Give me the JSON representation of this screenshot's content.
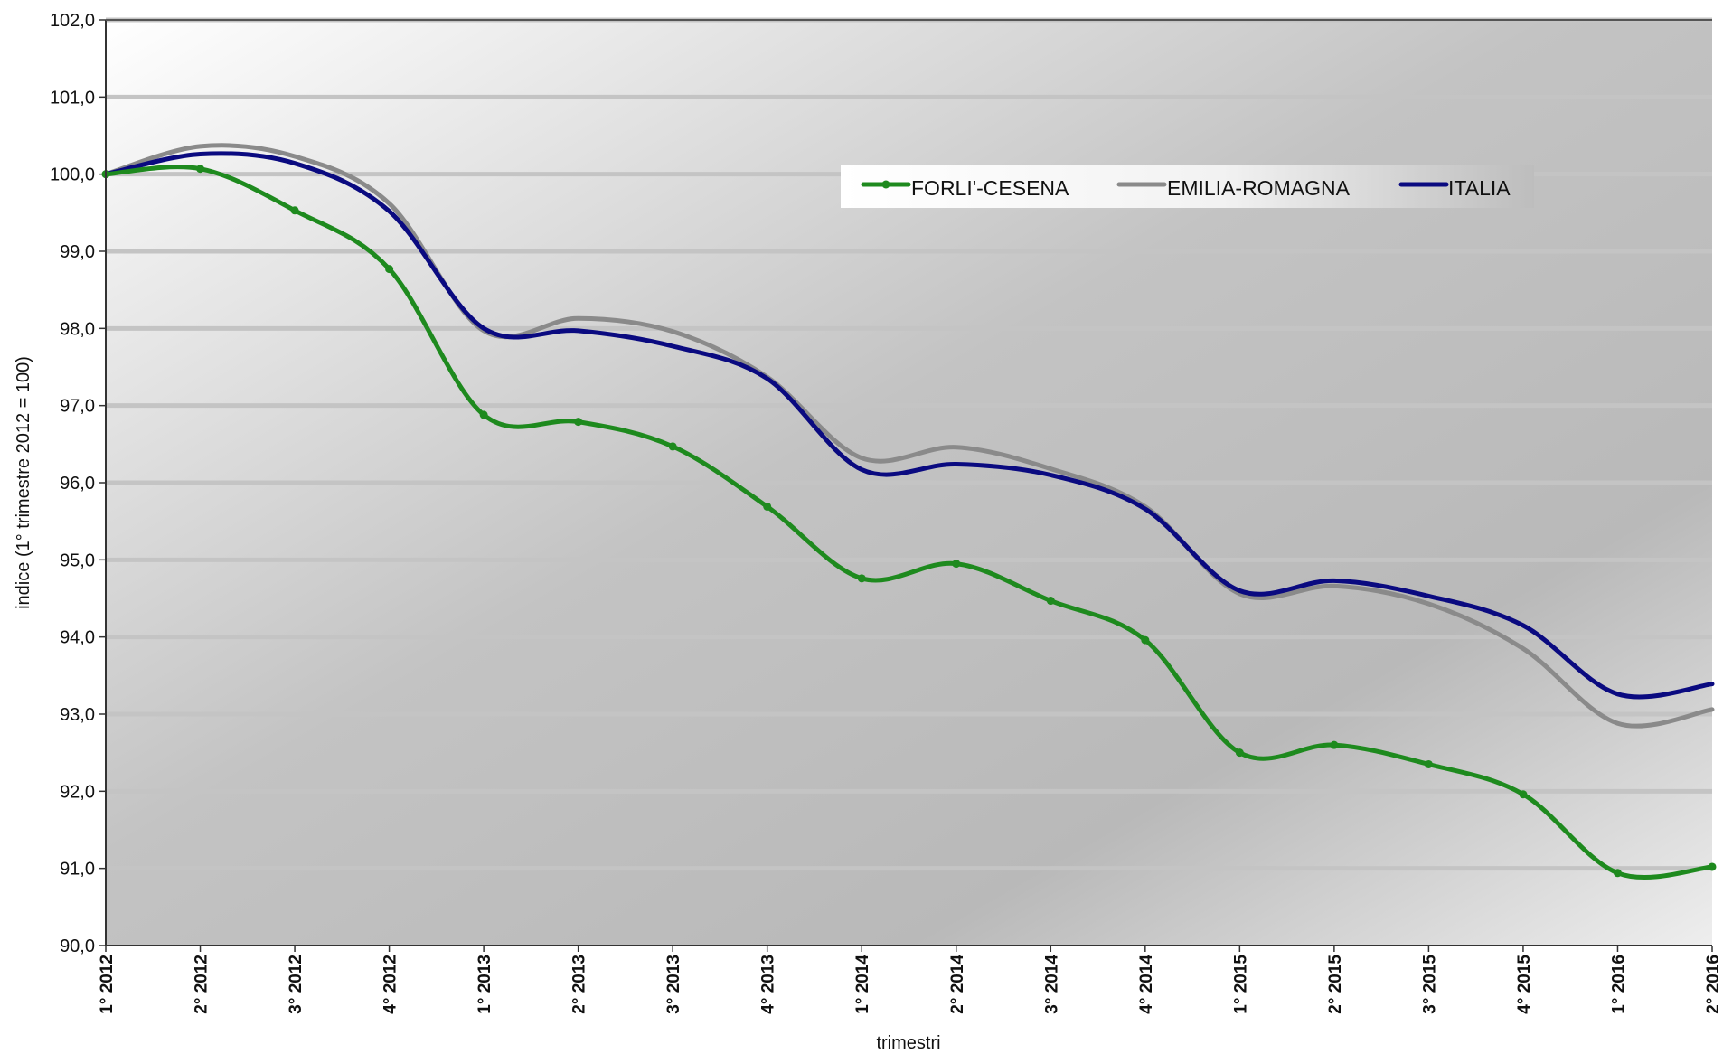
{
  "chart_data": {
    "type": "line",
    "title": "",
    "xlabel": "trimestri",
    "ylabel": "indice (1° trimestre 2012 = 100)",
    "ylim": [
      90,
      102
    ],
    "yticks": [
      "90,0",
      "91,0",
      "92,0",
      "93,0",
      "94,0",
      "95,0",
      "96,0",
      "97,0",
      "98,0",
      "99,0",
      "100,0",
      "101,0",
      "102,0"
    ],
    "grid": true,
    "legend_position": "top-right",
    "categories": [
      "1° 2012",
      "2° 2012",
      "3° 2012",
      "4° 2012",
      "1° 2013",
      "2° 2013",
      "3° 2013",
      "4° 2013",
      "1° 2014",
      "2° 2014",
      "3° 2014",
      "4° 2014",
      "1° 2015",
      "2° 2015",
      "3° 2015",
      "4° 2015",
      "1° 2016",
      "2° 2016"
    ],
    "series": [
      {
        "name": "FORLI'-CESENA",
        "color": "#1e8a1e",
        "markers": true,
        "values": [
          100.0,
          100.07,
          99.53,
          98.77,
          96.88,
          96.79,
          96.47,
          95.69,
          94.76,
          94.95,
          94.47,
          93.96,
          92.5,
          92.6,
          92.35,
          91.96,
          90.94,
          91.02
        ]
      },
      {
        "name": "EMILIA-ROMAGNA",
        "color": "#8a8a8a",
        "markers": false,
        "values": [
          100.0,
          100.36,
          100.23,
          99.62,
          97.97,
          98.13,
          97.96,
          97.37,
          96.32,
          96.46,
          96.18,
          95.69,
          94.56,
          94.66,
          94.43,
          93.85,
          92.88,
          93.06
        ]
      },
      {
        "name": "ITALIA",
        "color": "#0a0a80",
        "markers": false,
        "values": [
          100.0,
          100.26,
          100.14,
          99.52,
          98.0,
          97.97,
          97.77,
          97.35,
          96.17,
          96.24,
          96.1,
          95.66,
          94.6,
          94.73,
          94.53,
          94.15,
          93.26,
          93.39
        ]
      }
    ]
  }
}
